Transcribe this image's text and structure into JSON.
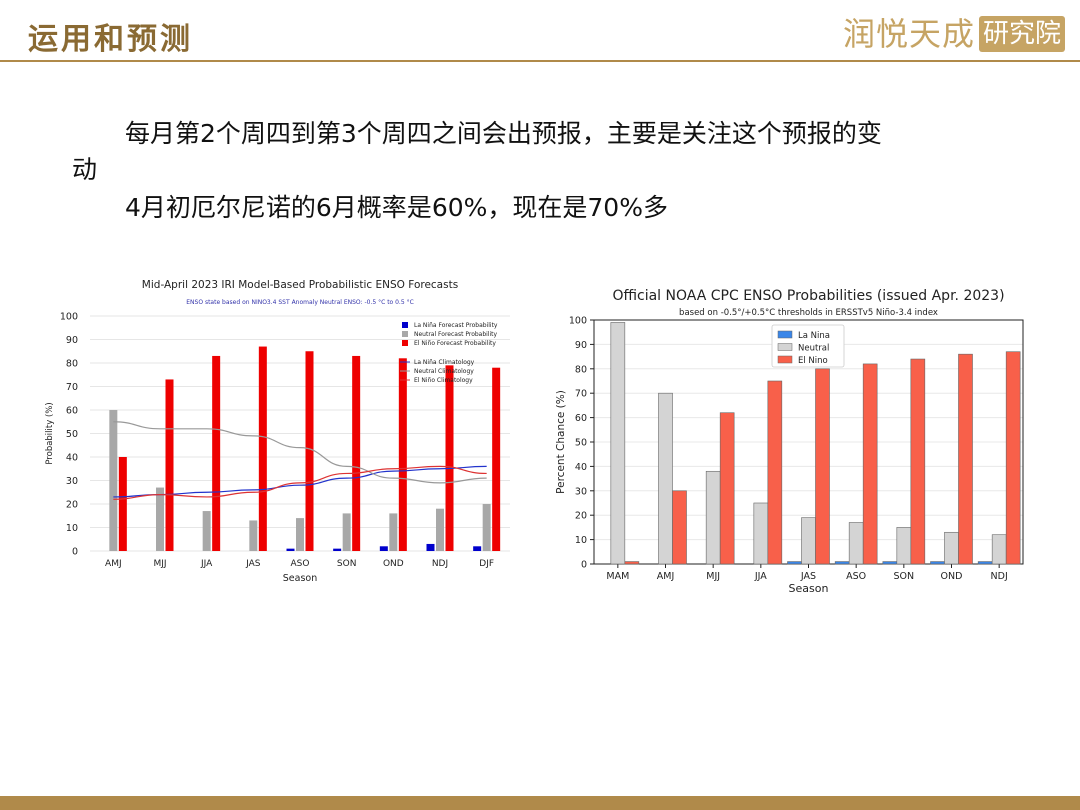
{
  "header": {
    "title": "运用和预测",
    "logo_script": "润悦天成",
    "logo_box": "研究院"
  },
  "text": {
    "line1": "每月第2个周四到第3个周四之间会出预报，主要是关注这个预报的变",
    "line1_wrap": "动",
    "line2": "4月初厄尔尼诺的6月概率是60%，现在是70%多"
  },
  "colors": {
    "accent": "#b08a4a",
    "title": "#8a6a33"
  },
  "chart_data": [
    {
      "type": "bar",
      "title": "Mid-April 2023 IRI Model-Based Probabilistic ENSO Forecasts",
      "subtitle": "ENSO state based on NINO3.4 SST Anomaly Neutral ENSO: -0.5 °C to 0.5 °C",
      "xlabel": "Season",
      "ylabel": "Probability (%)",
      "ylim": [
        0,
        100
      ],
      "yticks": [
        "0",
        "10",
        "20",
        "30",
        "40",
        "50",
        "60",
        "70",
        "80",
        "90",
        "100"
      ],
      "grid": true,
      "legend_position": "top-right",
      "categories": [
        "AMJ",
        "MJJ",
        "JJA",
        "JAS",
        "ASO",
        "SON",
        "OND",
        "NDJ",
        "DJF"
      ],
      "series": [
        {
          "name": "La Niña Forecast Probability",
          "color": "#0000cc",
          "values": [
            0,
            0,
            0,
            0,
            1,
            1,
            2,
            3,
            2
          ]
        },
        {
          "name": "Neutral Forecast Probability",
          "color": "#a8a8a8",
          "values": [
            60,
            27,
            17,
            13,
            14,
            16,
            16,
            18,
            20
          ]
        },
        {
          "name": "El Niño Forecast Probability",
          "color": "#ee0000",
          "values": [
            40,
            73,
            83,
            87,
            85,
            83,
            82,
            79,
            78
          ]
        }
      ],
      "climatology": [
        {
          "name": "La Niña Climatology",
          "color": "#2233cc",
          "values": [
            23,
            24,
            25,
            26,
            28,
            31,
            34,
            35,
            36
          ]
        },
        {
          "name": "Neutral Climatology",
          "color": "#999999",
          "values": [
            55,
            52,
            52,
            49,
            44,
            36,
            31,
            29,
            31
          ]
        },
        {
          "name": "El Niño Climatology",
          "color": "#dd3333",
          "values": [
            22,
            24,
            23,
            25,
            29,
            33,
            35,
            36,
            33
          ]
        }
      ]
    },
    {
      "type": "bar",
      "title": "Official NOAA CPC ENSO Probabilities (issued Apr. 2023)",
      "subtitle": "based on -0.5°/+0.5°C thresholds in ERSSTv5 Niño-3.4 index",
      "xlabel": "Season",
      "ylabel": "Percent Chance (%)",
      "ylim": [
        0,
        100
      ],
      "yticks": [
        "0",
        "10",
        "20",
        "30",
        "40",
        "50",
        "60",
        "70",
        "80",
        "90",
        "100"
      ],
      "grid": true,
      "legend_position": "top-center",
      "categories": [
        "MAM",
        "AMJ",
        "MJJ",
        "JJA",
        "JAS",
        "ASO",
        "SON",
        "OND",
        "NDJ"
      ],
      "series": [
        {
          "name": "La Nina",
          "color": "#3a86e8",
          "values": [
            0,
            0,
            0,
            0,
            1,
            1,
            1,
            1,
            1
          ]
        },
        {
          "name": "Neutral",
          "color": "#d4d4d4",
          "values": [
            99,
            70,
            38,
            25,
            19,
            17,
            15,
            13,
            12
          ]
        },
        {
          "name": "El Nino",
          "color": "#f8604a",
          "values": [
            1,
            30,
            62,
            75,
            80,
            82,
            84,
            86,
            87
          ]
        }
      ]
    }
  ]
}
